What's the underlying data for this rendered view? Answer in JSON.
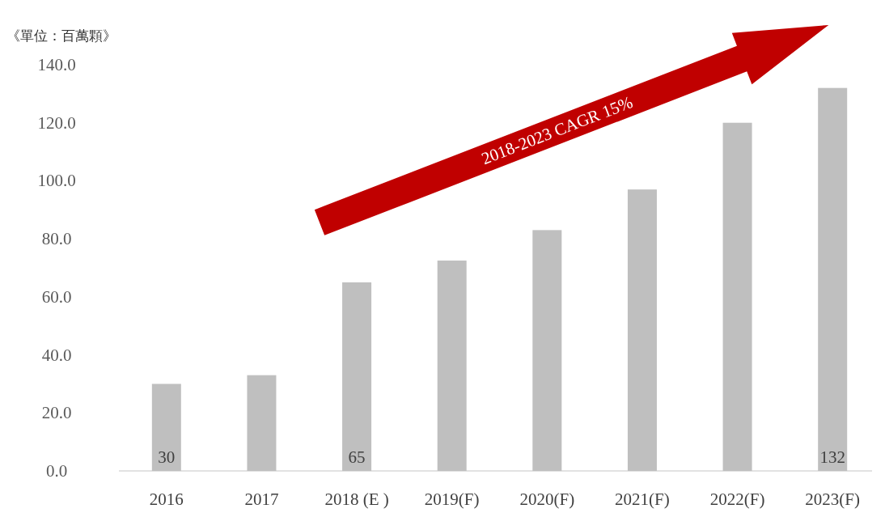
{
  "chart_data": {
    "type": "bar",
    "ylabel": "《單位：百萬顆》",
    "categories": [
      "2016",
      "2017",
      "2018 (E )",
      "2019(F)",
      "2020(F)",
      "2021(F)",
      "2022(F)",
      "2023(F)"
    ],
    "values": [
      30,
      33,
      65,
      72.5,
      83,
      97,
      120,
      132
    ],
    "value_labels": [
      "30",
      null,
      "65",
      null,
      null,
      null,
      null,
      "132"
    ],
    "color": "#bfbfbf",
    "ylim": [
      0,
      140
    ],
    "yticks": [
      {
        "value": 0,
        "label": "0.0"
      },
      {
        "value": 20,
        "label": "20.0"
      },
      {
        "value": 40,
        "label": "40.0"
      },
      {
        "value": 60,
        "label": "60.0"
      },
      {
        "value": 80,
        "label": "80.0"
      },
      {
        "value": 100,
        "label": "100.0"
      },
      {
        "value": 120,
        "label": "120.0"
      },
      {
        "value": 140,
        "label": "140.0"
      }
    ],
    "annotations": [
      "2018-2023 CAGR 15%"
    ]
  }
}
